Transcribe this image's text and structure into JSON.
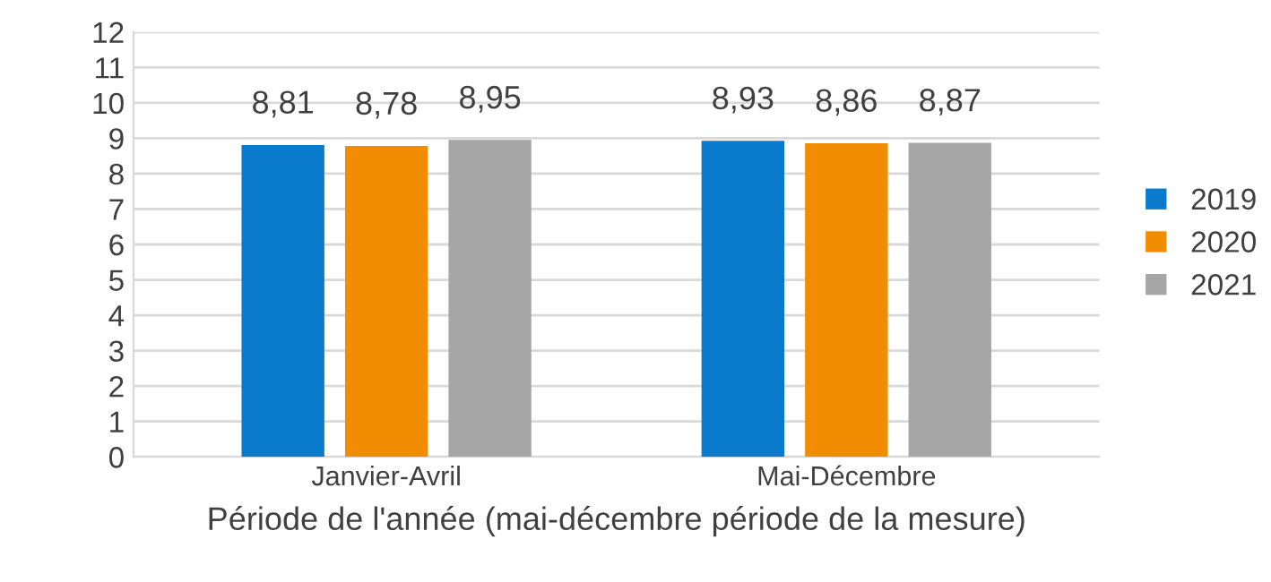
{
  "chart_data": {
    "type": "bar",
    "xlabel": "Période de l'année (mai-décembre période de la mesure)",
    "categories": [
      "Janvier-Avril",
      "Mai-Décembre"
    ],
    "series": [
      {
        "name": "2019",
        "color": "#0a7acc",
        "values": [
          8.81,
          8.93
        ],
        "value_labels": [
          "8,81",
          "8,93"
        ]
      },
      {
        "name": "2020",
        "color": "#f28c00",
        "values": [
          8.78,
          8.86
        ],
        "value_labels": [
          "8,78",
          "8,86"
        ]
      },
      {
        "name": "2021",
        "color": "#a6a6a6",
        "values": [
          8.95,
          8.87
        ],
        "value_labels": [
          "8,95",
          "8,87"
        ]
      }
    ],
    "ylim": [
      0,
      12
    ],
    "yticks": [
      0,
      1,
      2,
      3,
      4,
      5,
      6,
      7,
      8,
      9,
      10,
      11,
      12
    ],
    "grid": "y",
    "legend": "right"
  }
}
